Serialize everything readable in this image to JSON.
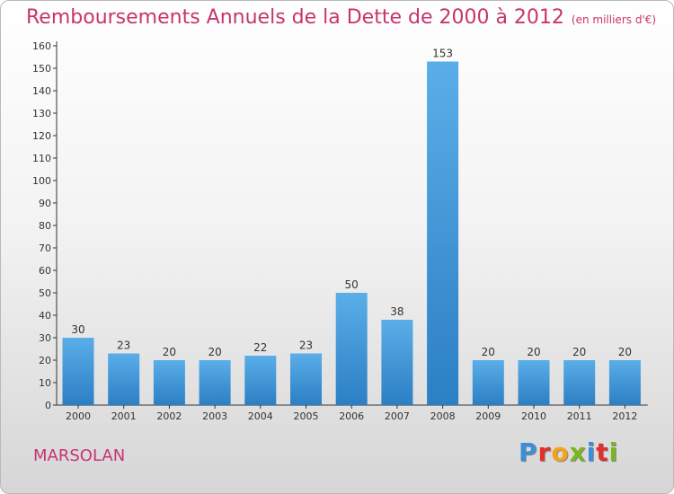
{
  "header": {
    "title": "Remboursements Annuels de la Dette de 2000 à 2012",
    "subtitle": "(en milliers d'€)"
  },
  "footer": {
    "commune": "MARSOLAN",
    "logo": "Proxiti"
  },
  "colors": {
    "title": "#c8346e",
    "bar_light": "#5aaee8",
    "bar_dark": "#2b7fc4",
    "axis": "#333333",
    "logo_letters": [
      "#3b8fd8",
      "#e2302c",
      "#f3a21a",
      "#7ab61d",
      "#3b8fd8",
      "#e2302c",
      "#7ab61d"
    ]
  },
  "chart_data": {
    "type": "bar",
    "categories": [
      "2000",
      "2001",
      "2002",
      "2003",
      "2004",
      "2005",
      "2006",
      "2007",
      "2008",
      "2009",
      "2010",
      "2011",
      "2012"
    ],
    "values": [
      30,
      23,
      20,
      20,
      22,
      23,
      50,
      38,
      153,
      20,
      20,
      20,
      20
    ],
    "ylim": [
      0,
      160
    ],
    "ytick_step": 10,
    "show_data_labels": true,
    "grid": false
  }
}
